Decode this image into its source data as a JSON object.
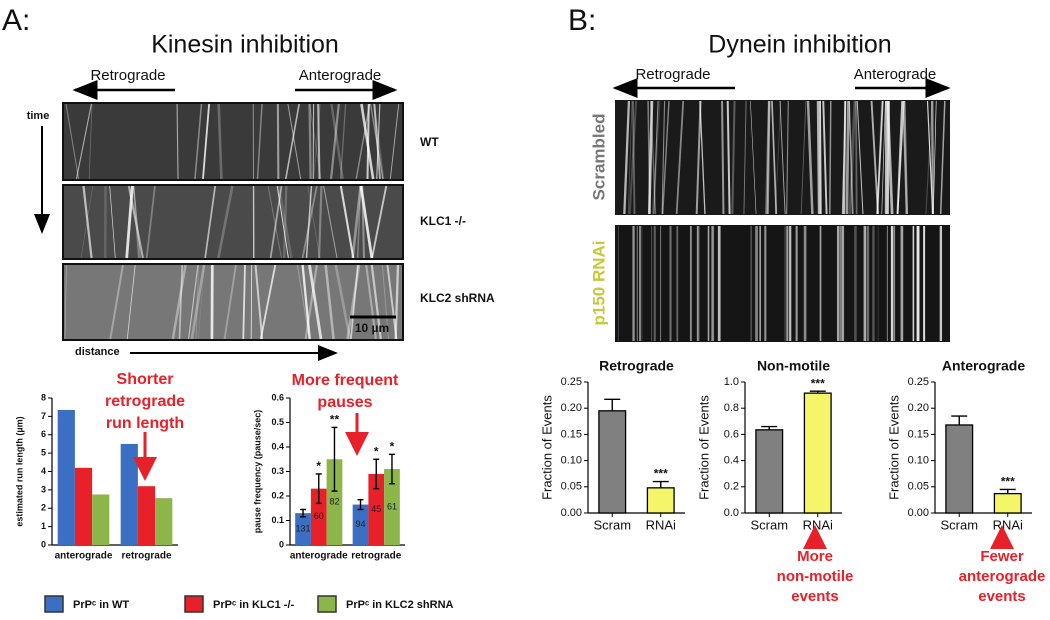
{
  "panel_a": {
    "label": "A:",
    "title": "Kinesin inhibition",
    "retrograde": "Retrograde",
    "anterograde": "Anterograde",
    "time": "time",
    "distance": "distance",
    "kymographs": [
      "WT",
      "KLC1 -/-",
      "KLC2 shRNA"
    ],
    "scale_bar": "10 µm"
  },
  "panel_b": {
    "label": "B:",
    "title": "Dynein inhibition",
    "retrograde": "Retrograde",
    "anterograde": "Anterograde",
    "kymographs": [
      "Scrambled",
      "p150 RNAi"
    ]
  },
  "chart_data": [
    {
      "type": "bar",
      "y_label": "estimated run length (µm)",
      "categories": [
        "anterograde",
        "retrograde"
      ],
      "series": [
        {
          "name": "PrPᶜ in WT",
          "color": "#3a6fc4",
          "values": [
            7.35,
            5.5
          ]
        },
        {
          "name": "PrPᶜ in KLC1 -/-",
          "color": "#e8202a",
          "values": [
            4.2,
            3.2
          ]
        },
        {
          "name": "PrPᶜ in KLC2 shRNA",
          "color": "#8cb54a",
          "values": [
            2.75,
            2.55
          ]
        }
      ],
      "ylim": [
        0,
        8
      ],
      "yticks": [
        0,
        1,
        2,
        3,
        4,
        5,
        6,
        7,
        8
      ],
      "annotation": [
        "Shorter",
        "retrograde",
        "run length"
      ],
      "annotation_color": "#e8202a"
    },
    {
      "type": "bar",
      "y_label": "pause frequency (pause/sec)",
      "categories": [
        "anterograde",
        "retrograde"
      ],
      "series": [
        {
          "color": "#3a6fc4",
          "values": [
            0.13,
            0.165
          ],
          "errors": [
            0.015,
            0.02
          ],
          "n": [
            131,
            94
          ],
          "significance": [
            null,
            null
          ]
        },
        {
          "color": "#e8202a",
          "values": [
            0.23,
            0.29
          ],
          "errors": [
            0.06,
            0.06
          ],
          "n": [
            60,
            45
          ],
          "significance": [
            "*",
            "*"
          ]
        },
        {
          "color": "#8cb54a",
          "values": [
            0.35,
            0.31
          ],
          "errors": [
            0.13,
            0.06
          ],
          "n": [
            82,
            61
          ],
          "significance": [
            "**",
            "*"
          ]
        }
      ],
      "ylim": [
        0,
        0.6
      ],
      "yticks": [
        0,
        0.1,
        0.2,
        0.3,
        0.4,
        0.5,
        0.6
      ],
      "annotation": [
        "More frequent",
        "pauses"
      ],
      "annotation_color": "#e8202a"
    },
    {
      "type": "bar",
      "title": "Retrograde",
      "y_label": "Fraction of Events",
      "categories": [
        "Scram",
        "RNAi"
      ],
      "series": [
        {
          "values": [
            0.195,
            0.048
          ],
          "errors": [
            0.022,
            0.012
          ],
          "colors": [
            "#808080",
            "#f5f56a"
          ],
          "significance": [
            null,
            "***"
          ]
        }
      ],
      "ylim": [
        0,
        0.25
      ],
      "yticks": [
        {
          "value": 0,
          "label": "0.00"
        },
        {
          "value": 0.05,
          "label": "0.05"
        },
        {
          "value": 0.1,
          "label": "0.10"
        },
        {
          "value": 0.15,
          "label": "0.15"
        },
        {
          "value": 0.2,
          "label": "0.20"
        },
        {
          "value": 0.25,
          "label": "0.25"
        }
      ]
    },
    {
      "type": "bar",
      "title": "Non-motile",
      "y_label": "Fraction of Events",
      "categories": [
        "Scram",
        "RNAi"
      ],
      "series": [
        {
          "values": [
            0.635,
            0.915
          ],
          "errors": [
            0.025,
            0.015
          ],
          "colors": [
            "#808080",
            "#f5f56a"
          ],
          "significance": [
            null,
            "***"
          ]
        }
      ],
      "ylim": [
        0,
        1.0
      ],
      "yticks": [
        {
          "value": 0,
          "label": "0.0"
        },
        {
          "value": 0.2,
          "label": "0.2"
        },
        {
          "value": 0.4,
          "label": "0.4"
        },
        {
          "value": 0.6,
          "label": "0.6"
        },
        {
          "value": 0.8,
          "label": "0.8"
        },
        {
          "value": 1.0,
          "label": "1.0"
        }
      ],
      "annotation": [
        "More",
        "non-motile",
        "events"
      ],
      "annotation_color": "#e8202a"
    },
    {
      "type": "bar",
      "title": "Anterograde",
      "y_label": "Fraction of Events",
      "categories": [
        "Scram",
        "RNAi"
      ],
      "series": [
        {
          "values": [
            0.168,
            0.037
          ],
          "errors": [
            0.017,
            0.008
          ],
          "colors": [
            "#808080",
            "#f5f56a"
          ],
          "significance": [
            null,
            "***"
          ]
        }
      ],
      "ylim": [
        0,
        0.25
      ],
      "yticks": [
        {
          "value": 0,
          "label": "0.00"
        },
        {
          "value": 0.05,
          "label": "0.05"
        },
        {
          "value": 0.1,
          "label": "0.10"
        },
        {
          "value": 0.15,
          "label": "0.15"
        },
        {
          "value": 0.2,
          "label": "0.20"
        },
        {
          "value": 0.25,
          "label": "0.25"
        }
      ],
      "annotation": [
        "Fewer",
        "anterograde",
        "events"
      ],
      "annotation_color": "#e8202a"
    }
  ]
}
